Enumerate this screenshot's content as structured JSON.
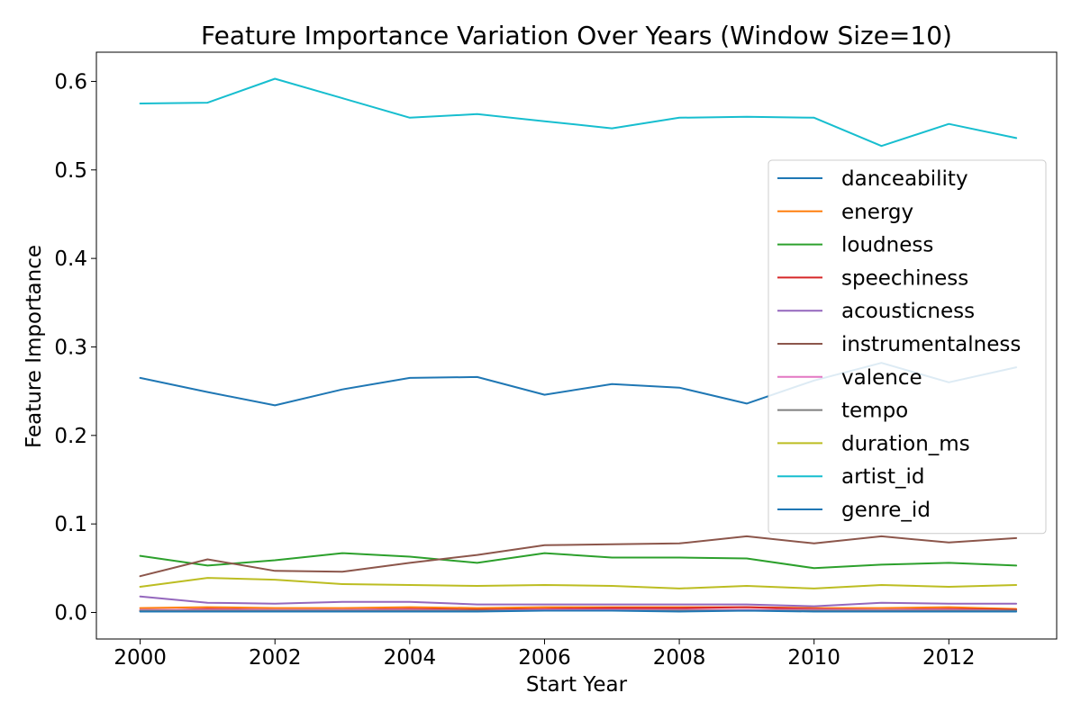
{
  "chart_data": {
    "type": "line",
    "title": "Feature Importance Variation Over Years (Window Size=10)",
    "xlabel": "Start Year",
    "ylabel": "Feature Importance",
    "xlim": [
      1999.35,
      2013.6
    ],
    "ylim": [
      -0.03,
      0.633
    ],
    "xticks": [
      2000,
      2002,
      2004,
      2006,
      2008,
      2010,
      2012
    ],
    "yticks": [
      0.0,
      0.1,
      0.2,
      0.3,
      0.4,
      0.5,
      0.6
    ],
    "ytick_labels": [
      "0.0",
      "0.1",
      "0.2",
      "0.3",
      "0.4",
      "0.5",
      "0.6"
    ],
    "legend_position": "right",
    "grid": false,
    "x": [
      2000,
      2001,
      2002,
      2003,
      2004,
      2005,
      2006,
      2007,
      2008,
      2009,
      2010,
      2011,
      2012,
      2013
    ],
    "series": [
      {
        "name": "danceability",
        "color": "#1f77b4",
        "values": [
          0.265,
          0.249,
          0.234,
          0.252,
          0.265,
          0.266,
          0.246,
          0.258,
          0.254,
          0.236,
          0.262,
          0.282,
          0.26,
          0.277
        ]
      },
      {
        "name": "energy",
        "color": "#ff7f0e",
        "values": [
          0.005,
          0.006,
          0.005,
          0.005,
          0.006,
          0.005,
          0.006,
          0.006,
          0.006,
          0.006,
          0.005,
          0.005,
          0.006,
          0.004
        ]
      },
      {
        "name": "loudness",
        "color": "#2ca02c",
        "values": [
          0.064,
          0.053,
          0.059,
          0.067,
          0.063,
          0.056,
          0.067,
          0.062,
          0.062,
          0.061,
          0.05,
          0.054,
          0.056,
          0.053
        ]
      },
      {
        "name": "speechiness",
        "color": "#d62728",
        "values": [
          0.002,
          0.004,
          0.003,
          0.003,
          0.004,
          0.003,
          0.004,
          0.005,
          0.005,
          0.006,
          0.004,
          0.003,
          0.004,
          0.003
        ]
      },
      {
        "name": "acousticness",
        "color": "#9467bd",
        "values": [
          0.018,
          0.011,
          0.01,
          0.012,
          0.012,
          0.009,
          0.009,
          0.009,
          0.009,
          0.009,
          0.007,
          0.011,
          0.01,
          0.01
        ]
      },
      {
        "name": "instrumentalness",
        "color": "#8c564b",
        "values": [
          0.041,
          0.06,
          0.047,
          0.046,
          0.056,
          0.065,
          0.076,
          0.077,
          0.078,
          0.086,
          0.078,
          0.086,
          0.079,
          0.084
        ]
      },
      {
        "name": "valence",
        "color": "#e377c2",
        "values": [
          0.003,
          0.003,
          0.003,
          0.003,
          0.003,
          0.002,
          0.003,
          0.003,
          0.003,
          0.003,
          0.003,
          0.003,
          0.003,
          0.002
        ]
      },
      {
        "name": "tempo",
        "color": "#7f7f7f",
        "values": [
          0.002,
          0.002,
          0.002,
          0.002,
          0.002,
          0.002,
          0.002,
          0.002,
          0.002,
          0.002,
          0.002,
          0.002,
          0.002,
          0.002
        ]
      },
      {
        "name": "duration_ms",
        "color": "#bcbd22",
        "values": [
          0.029,
          0.039,
          0.037,
          0.032,
          0.031,
          0.03,
          0.031,
          0.03,
          0.027,
          0.03,
          0.027,
          0.031,
          0.029,
          0.031
        ]
      },
      {
        "name": "artist_id",
        "color": "#17becf",
        "values": [
          0.575,
          0.576,
          0.603,
          0.581,
          0.559,
          0.563,
          0.555,
          0.547,
          0.559,
          0.56,
          0.559,
          0.527,
          0.552,
          0.536
        ]
      },
      {
        "name": "genre_id",
        "color": "#1f77b4",
        "values": [
          0.001,
          0.001,
          0.001,
          0.001,
          0.001,
          0.001,
          0.002,
          0.002,
          0.001,
          0.002,
          0.001,
          0.001,
          0.001,
          0.001
        ]
      }
    ]
  }
}
